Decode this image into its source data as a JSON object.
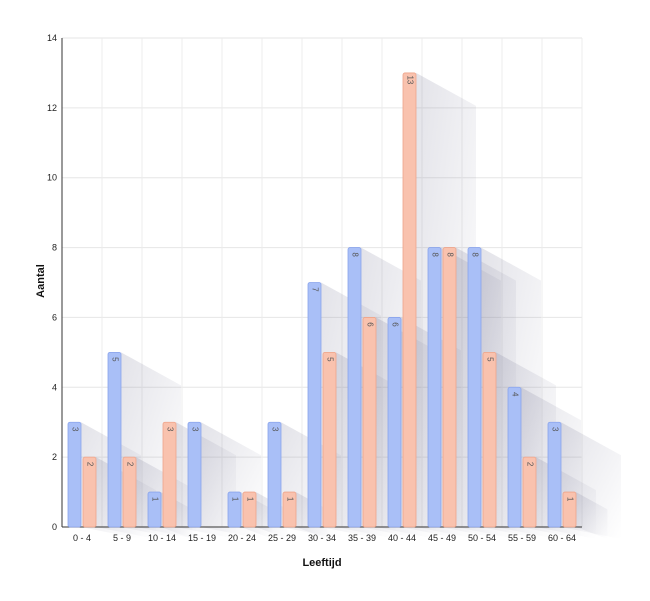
{
  "chart_data": {
    "type": "bar",
    "title": "",
    "xlabel": "Leeftijd",
    "ylabel": "Aantal",
    "categories": [
      "0 - 4",
      "5 - 9",
      "10 - 14",
      "15 - 19",
      "20 - 24",
      "25 - 29",
      "30 - 34",
      "35 - 39",
      "40 - 44",
      "45 - 49",
      "50 - 54",
      "55 - 59",
      "60 - 64"
    ],
    "series": [
      {
        "color": "#a9bff7",
        "values": [
          3,
          5,
          1,
          3,
          1,
          3,
          7,
          8,
          6,
          8,
          8,
          4,
          3
        ]
      },
      {
        "color": "#f9c2ae",
        "values": [
          2,
          2,
          3,
          0,
          1,
          1,
          5,
          6,
          13,
          8,
          5,
          2,
          1
        ]
      }
    ],
    "ylim": [
      0,
      14
    ],
    "yticks": [
      0,
      2,
      4,
      6,
      8,
      10,
      12,
      14
    ],
    "grid": true,
    "legend": "none",
    "show_value_labels": true
  }
}
